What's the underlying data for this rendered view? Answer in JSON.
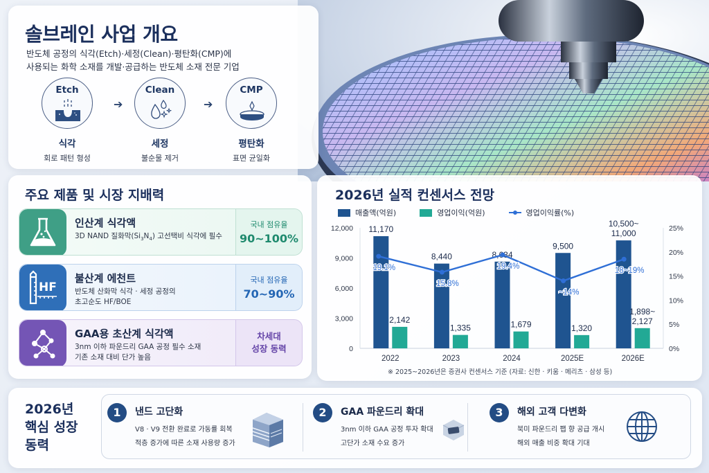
{
  "overview": {
    "title": "솔브레인 사업 개요",
    "description_line1": "반도체 공정의 식각(Etch)·세정(Clean)·평탄화(CMP)에",
    "description_line2": "사용되는 화학 소재를 개발·공급하는 반도체 소재 전문 기업",
    "steps": [
      {
        "icon_title": "Etch",
        "name": "식각",
        "sub": "회로 패턴 형성",
        "icon": "etch-icon"
      },
      {
        "icon_title": "Clean",
        "name": "세정",
        "sub": "불순물 제거",
        "icon": "droplets-icon"
      },
      {
        "icon_title": "CMP",
        "name": "평탄화",
        "sub": "표면 균일화",
        "icon": "wafer-polish-icon"
      }
    ],
    "arrow": "➔"
  },
  "products": {
    "title": "주요 제품 및 시장 지배력",
    "items": [
      {
        "name": "인산계 식각액",
        "desc_pre": "3D NAND 질화막(Si",
        "desc_sub1": "3",
        "desc_mid": "N",
        "desc_sub2": "4",
        "desc_post": ") 고선택비 식각에 필수",
        "stat_label": "국내 점유율",
        "stat_value": "90~100%",
        "icon": "flask-icon",
        "color": "#3f9f86"
      },
      {
        "name": "불산계 에천트",
        "desc_line1": "반도체 산화막 식각 · 세정 공정의",
        "desc_line2": "초고순도 HF/BOE",
        "stat_label": "국내 점유율",
        "stat_value": "70~90%",
        "icon_text": "HF",
        "icon": "hf-bottle-icon",
        "color": "#2f6fb8"
      },
      {
        "name": "GAA용 초산계 식각액",
        "desc_line1": "3nm 이하 파운드리 GAA 공정 필수 소재",
        "desc_line2": "기존 소재 대비 단가 높음",
        "stat_line1": "차세대",
        "stat_line2": "성장 동력",
        "icon": "molecule-icon",
        "color": "#7455b5"
      }
    ]
  },
  "chart_data": {
    "type": "bar",
    "title": "2026년 실적 컨센서스 전망",
    "categories": [
      "2022",
      "2023",
      "2024",
      "2025E",
      "2026E"
    ],
    "series": [
      {
        "name": "매출액(억원)",
        "type": "bar",
        "axis": "left",
        "color": "#1f5490",
        "values": [
          11170,
          8440,
          8634,
          9500,
          10750
        ],
        "labels": [
          "11,170",
          "8,440",
          "8,634",
          "9,500",
          "10,500~\n11,000"
        ]
      },
      {
        "name": "영업이익(억원)",
        "type": "bar",
        "axis": "left",
        "color": "#22a995",
        "values": [
          2142,
          1335,
          1679,
          1320,
          2012
        ],
        "labels": [
          "2,142",
          "1,335",
          "1,679",
          "1,320",
          "1,898~\n2,127"
        ]
      },
      {
        "name": "영업이익률(%)",
        "type": "line",
        "axis": "right",
        "color": "#2f6fd6",
        "values": [
          19.1,
          15.8,
          19.4,
          14,
          18.5
        ],
        "labels": [
          "19.1%",
          "15.8%",
          "19.4%",
          "~14%",
          "18~19%"
        ]
      }
    ],
    "y_left": {
      "range": [
        0,
        12000
      ],
      "ticks": [
        "0",
        "3,000",
        "6,000",
        "9,000",
        "12,000"
      ],
      "tick_values": [
        0,
        3000,
        6000,
        9000,
        12000
      ]
    },
    "y_right": {
      "range": [
        0,
        25
      ],
      "ticks": [
        "0%",
        "5%",
        "10%",
        "15%",
        "20%",
        "25%"
      ],
      "tick_values": [
        0,
        5,
        10,
        15,
        20,
        25
      ]
    },
    "legend_position": "top-left",
    "footnote": "※ 2025~2026년은 증권사 컨센서스 기준  (자료: 신한 · 키움 · 메리츠 · 삼성 등)"
  },
  "growth": {
    "title_line1": "2026년",
    "title_line2": "핵심 성장",
    "title_line3": "동력",
    "items": [
      {
        "num": "1",
        "name": "낸드 고단화",
        "desc_line1": "V8 · V9 전환 완료로 가동률 회복",
        "desc_line2": "적층 증가에 따른 소재 사용량 증가",
        "icon": "stacked-layers-icon"
      },
      {
        "num": "2",
        "name": "GAA 파운드리 확대",
        "desc_line1": "3nm 이하 GAA 공정 투자 확대",
        "desc_line2": "고단가 소재 수요 증가",
        "icon": "chip-icon"
      },
      {
        "num": "3",
        "name": "해외 고객 다변화",
        "desc_line1": "북미 파운드리 팹 향 공급 개시",
        "desc_line2": "해외 매출 비중 확대 기대",
        "icon": "globe-icon"
      }
    ]
  }
}
